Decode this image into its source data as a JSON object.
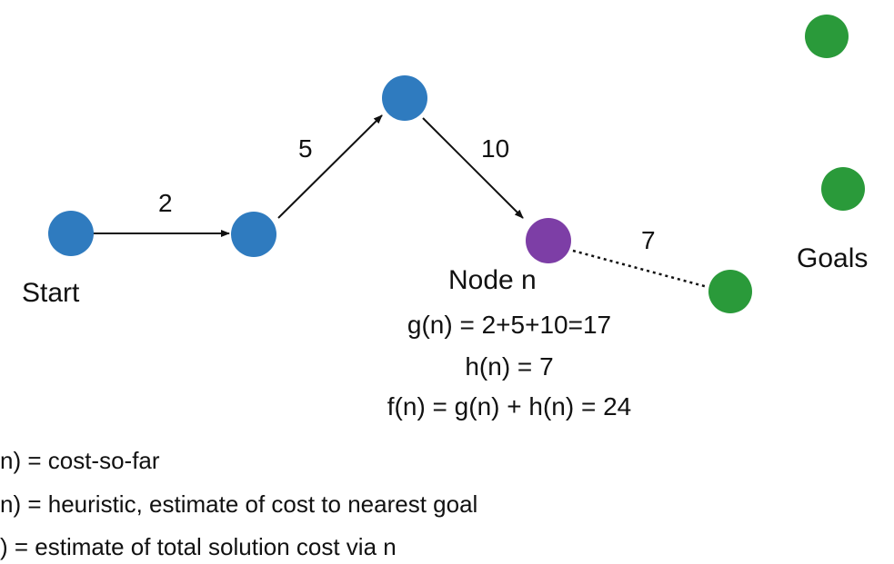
{
  "colors": {
    "regular_node": "#2f7bbf",
    "current_node": "#7d3ea6",
    "goal_node": "#2a9a3a",
    "edge": "#111111",
    "text": "#111111"
  },
  "edges": [
    {
      "from": "start",
      "to": "n1",
      "cost": "2",
      "style": "solid"
    },
    {
      "from": "n1",
      "to": "n2",
      "cost": "5",
      "style": "solid"
    },
    {
      "from": "n2",
      "to": "node_n",
      "cost": "10",
      "style": "solid"
    },
    {
      "from": "node_n",
      "to": "goal3",
      "cost": "7",
      "style": "dashed"
    }
  ],
  "labels": {
    "start": "Start",
    "node_n": "Node n",
    "goals": "Goals"
  },
  "formulas": {
    "g": "g(n) = 2+5+10=17",
    "h": "h(n) = 7",
    "f": "f(n) = g(n) + h(n) = 24"
  },
  "legend": [
    "n) = cost-so-far",
    "n) = heuristic, estimate of cost to nearest goal",
    ") = estimate of total solution cost via n"
  ]
}
